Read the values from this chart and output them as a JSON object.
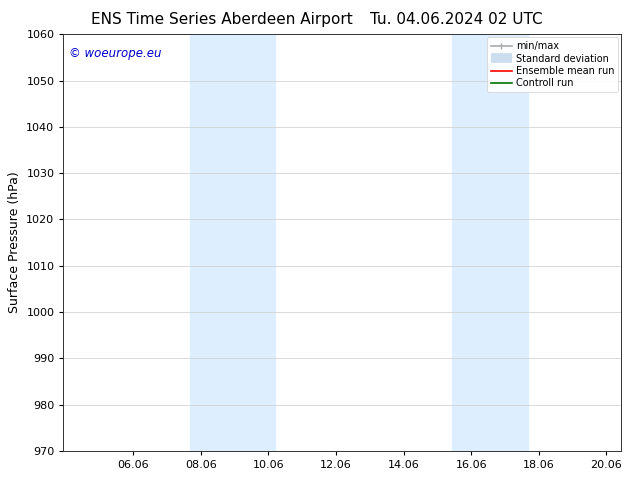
{
  "title": "ENS Time Series Aberdeen Airport",
  "title_right": "Tu. 04.06.2024 02 UTC",
  "ylabel": "Surface Pressure (hPa)",
  "ylim": [
    970,
    1060
  ],
  "yticks": [
    970,
    980,
    990,
    1000,
    1010,
    1020,
    1030,
    1040,
    1050,
    1060
  ],
  "xlim": [
    4.0,
    20.5
  ],
  "xticks": [
    6.06,
    8.06,
    10.06,
    12.06,
    14.06,
    16.06,
    18.06,
    20.06
  ],
  "xticklabels": [
    "06.06",
    "08.06",
    "10.06",
    "12.06",
    "14.06",
    "16.06",
    "18.06",
    "20.06"
  ],
  "shaded_regions": [
    {
      "xmin": 7.75,
      "xmax": 10.25,
      "color": "#ddeeff"
    },
    {
      "xmin": 15.5,
      "xmax": 17.75,
      "color": "#ddeeff"
    }
  ],
  "watermark_text": "© woeurope.eu",
  "watermark_color": "#0000cc",
  "bg_color": "#ffffff",
  "legend_items": [
    {
      "label": "min/max",
      "color": "#aaaaaa",
      "lw": 1.2
    },
    {
      "label": "Standard deviation",
      "color": "#ccddee",
      "lw": 7
    },
    {
      "label": "Ensemble mean run",
      "color": "#ff0000",
      "lw": 1.2
    },
    {
      "label": "Controll run",
      "color": "#007700",
      "lw": 1.2
    }
  ],
  "title_fontsize": 11,
  "ylabel_fontsize": 9,
  "tick_fontsize": 8,
  "legend_fontsize": 7,
  "watermark_fontsize": 8.5
}
